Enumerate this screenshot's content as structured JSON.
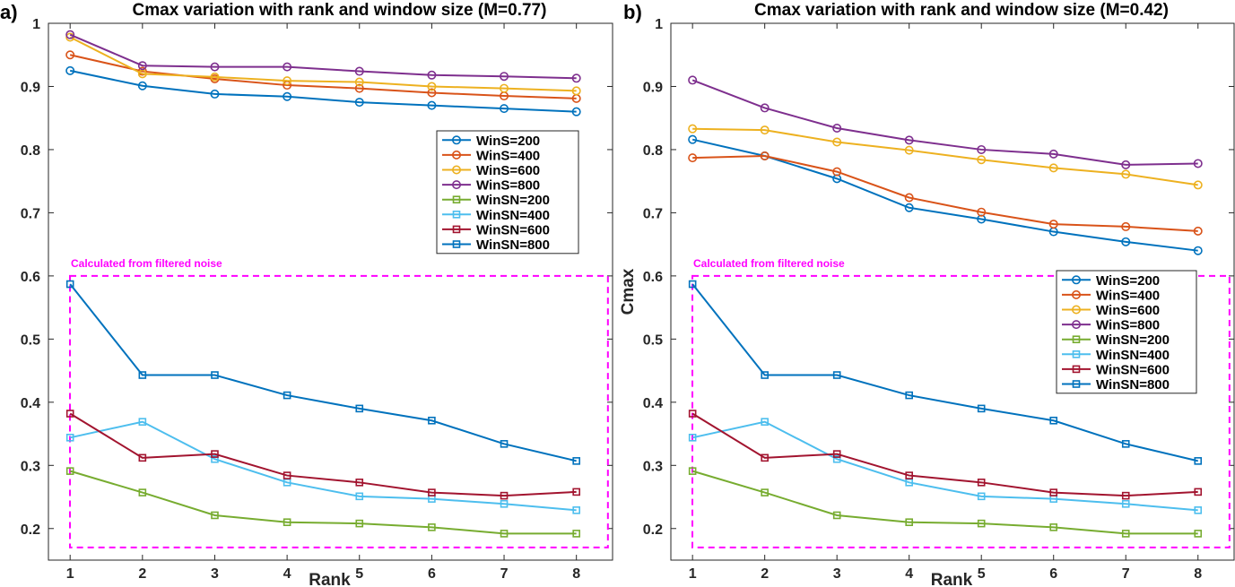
{
  "chart_data": [
    {
      "type": "line",
      "panel_label": "a)",
      "title": "Cmax variation with rank and window size (M=0.77)",
      "xlabel": "Rank",
      "ylabel": "",
      "x": [
        1,
        2,
        3,
        4,
        5,
        6,
        7,
        8
      ],
      "xticks": [
        "1",
        "2",
        "3",
        "4",
        "5",
        "6",
        "7",
        "8"
      ],
      "xlim": [
        0.7,
        8.5
      ],
      "ylim": [
        0.15,
        1.0
      ],
      "yticks": [
        "0.2",
        "0.3",
        "0.4",
        "0.5",
        "0.6",
        "0.7",
        "0.8",
        "0.9",
        "1"
      ],
      "ytick_values": [
        0.2,
        0.3,
        0.4,
        0.5,
        0.6,
        0.7,
        0.8,
        0.9,
        1.0
      ],
      "legend_position": "middle-right",
      "annotation": "Calculated from filtered noise",
      "annotation_box": {
        "x": [
          0.7,
          8.2
        ],
        "y": [
          0.17,
          0.6
        ]
      },
      "series": [
        {
          "name": "WinS=200",
          "color": "#0072BD",
          "marker": "circle",
          "values": [
            0.925,
            0.901,
            0.888,
            0.884,
            0.875,
            0.87,
            0.865,
            0.86
          ]
        },
        {
          "name": "WinS=400",
          "color": "#D95319",
          "marker": "circle",
          "values": [
            0.95,
            0.924,
            0.912,
            0.902,
            0.897,
            0.89,
            0.885,
            0.881
          ]
        },
        {
          "name": "WinS=600",
          "color": "#EDB120",
          "marker": "circle",
          "values": [
            0.978,
            0.92,
            0.915,
            0.909,
            0.907,
            0.9,
            0.897,
            0.893
          ]
        },
        {
          "name": "WinS=800",
          "color": "#7E2F8E",
          "marker": "circle",
          "values": [
            0.982,
            0.933,
            0.931,
            0.931,
            0.924,
            0.918,
            0.916,
            0.913
          ]
        },
        {
          "name": "WinSN=200",
          "color": "#77AC30",
          "marker": "square",
          "values": [
            0.291,
            0.257,
            0.221,
            0.21,
            0.208,
            0.202,
            0.192,
            0.192
          ]
        },
        {
          "name": "WinSN=400",
          "color": "#4DBEEE",
          "marker": "square",
          "values": [
            0.344,
            0.369,
            0.31,
            0.273,
            0.251,
            0.247,
            0.239,
            0.229
          ]
        },
        {
          "name": "WinSN=600",
          "color": "#A2142F",
          "marker": "square",
          "values": [
            0.382,
            0.312,
            0.318,
            0.284,
            0.273,
            0.257,
            0.252,
            0.258
          ]
        },
        {
          "name": "WinSN=800",
          "color": "#0072BD",
          "marker": "square",
          "values": [
            0.587,
            0.443,
            0.443,
            0.411,
            0.39,
            0.371,
            0.334,
            0.307
          ]
        }
      ]
    },
    {
      "type": "line",
      "panel_label": "b)",
      "title": "Cmax variation with rank and window size (M=0.42)",
      "xlabel": "Rank",
      "ylabel": "Cmax",
      "x": [
        1,
        2,
        3,
        4,
        5,
        6,
        7,
        8
      ],
      "xticks": [
        "1",
        "2",
        "3",
        "4",
        "5",
        "6",
        "7",
        "8"
      ],
      "xlim": [
        0.7,
        8.5
      ],
      "ylim": [
        0.15,
        1.0
      ],
      "yticks": [
        "0.2",
        "0.3",
        "0.4",
        "0.5",
        "0.6",
        "0.7",
        "0.8",
        "0.9",
        "1"
      ],
      "ytick_values": [
        0.2,
        0.3,
        0.4,
        0.5,
        0.6,
        0.7,
        0.8,
        0.9,
        1.0
      ],
      "legend_position": "middle-right",
      "annotation": "Calculated from filtered noise",
      "annotation_box": {
        "x": [
          0.7,
          8.2
        ],
        "y": [
          0.17,
          0.6
        ]
      },
      "series": [
        {
          "name": "WinS=200",
          "color": "#0072BD",
          "marker": "circle",
          "values": [
            0.816,
            0.79,
            0.754,
            0.708,
            0.69,
            0.67,
            0.654,
            0.64
          ]
        },
        {
          "name": "WinS=400",
          "color": "#D95319",
          "marker": "circle",
          "values": [
            0.787,
            0.79,
            0.765,
            0.724,
            0.701,
            0.682,
            0.678,
            0.671
          ]
        },
        {
          "name": "WinS=600",
          "color": "#EDB120",
          "marker": "circle",
          "values": [
            0.833,
            0.831,
            0.812,
            0.799,
            0.784,
            0.771,
            0.761,
            0.744
          ]
        },
        {
          "name": "WinS=800",
          "color": "#7E2F8E",
          "marker": "circle",
          "values": [
            0.91,
            0.866,
            0.834,
            0.815,
            0.8,
            0.793,
            0.776,
            0.778
          ]
        },
        {
          "name": "WinSN=200",
          "color": "#77AC30",
          "marker": "square",
          "values": [
            0.291,
            0.257,
            0.221,
            0.21,
            0.208,
            0.202,
            0.192,
            0.192
          ]
        },
        {
          "name": "WinSN=400",
          "color": "#4DBEEE",
          "marker": "square",
          "values": [
            0.344,
            0.369,
            0.31,
            0.273,
            0.251,
            0.247,
            0.239,
            0.229
          ]
        },
        {
          "name": "WinSN=600",
          "color": "#A2142F",
          "marker": "square",
          "values": [
            0.382,
            0.312,
            0.318,
            0.284,
            0.273,
            0.257,
            0.252,
            0.258
          ]
        },
        {
          "name": "WinSN=800",
          "color": "#0072BD",
          "marker": "square",
          "values": [
            0.587,
            0.443,
            0.443,
            0.411,
            0.39,
            0.371,
            0.334,
            0.307
          ]
        }
      ]
    }
  ]
}
